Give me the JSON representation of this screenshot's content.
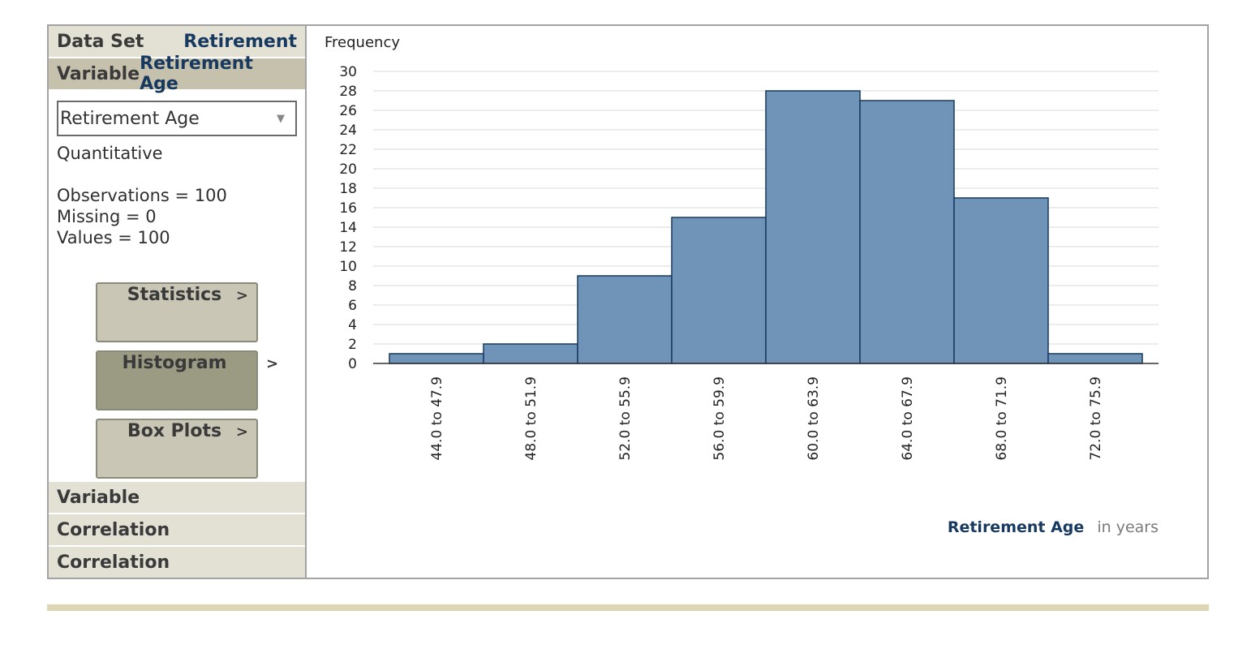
{
  "sidebar": {
    "dataset_label": "Data Set",
    "dataset_value": "Retirement",
    "variable_label": "Variable",
    "variable_value": "Retirement Age",
    "selected_variable": "Retirement Age",
    "variable_type": "Quantitative",
    "observations": "Observations = 100",
    "missing": "Missing = 0",
    "values": "Values = 100",
    "buttons": [
      {
        "label": "Statistics",
        "chevron": ">"
      },
      {
        "label": "Histogram",
        "chevron": ">"
      },
      {
        "label": "Box Plots",
        "chevron": ">"
      }
    ],
    "bottom_items": [
      "Variable",
      "Correlation",
      "Correlation"
    ]
  },
  "colors": {
    "bar_fill": "#7094b8",
    "bar_stroke": "#17395f",
    "axis_title": "#17395f"
  },
  "chart_data": {
    "type": "bar",
    "ylabel": "Frequency",
    "xlabel": "Retirement Age",
    "xunit": "in years",
    "categories": [
      "44.0 to 47.9",
      "48.0 to 51.9",
      "52.0 to 55.9",
      "56.0 to 59.9",
      "60.0 to 63.9",
      "64.0 to 67.9",
      "68.0 to 71.9",
      "72.0 to 75.9"
    ],
    "values": [
      1,
      2,
      9,
      15,
      28,
      27,
      17,
      1
    ],
    "ylim": [
      0,
      30
    ],
    "yticks": [
      0,
      2,
      4,
      6,
      8,
      10,
      12,
      14,
      16,
      18,
      20,
      22,
      24,
      26,
      28,
      30
    ],
    "grid": true
  }
}
